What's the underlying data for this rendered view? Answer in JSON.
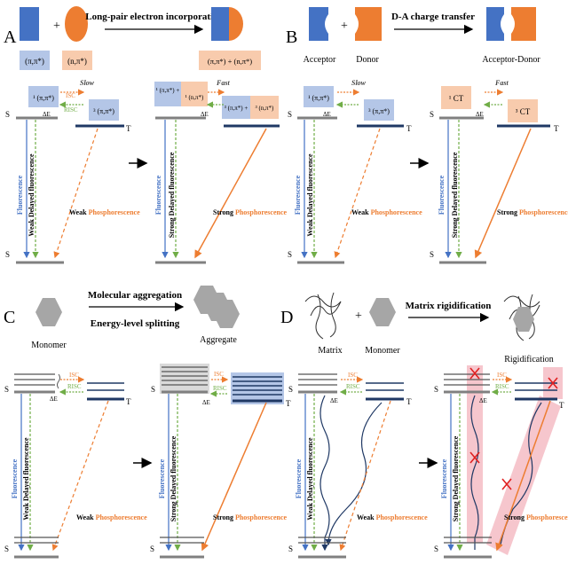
{
  "colors": {
    "blue": "#4472c4",
    "blue_light": "#b4c6e7",
    "orange": "#ed7d31",
    "orange_light": "#f8cbad",
    "green": "#70ad47",
    "navy": "#1f3864",
    "gray": "#808080",
    "red": "#e02020",
    "pink": "#f4b8c0"
  },
  "panelA": {
    "letter": "A",
    "arrow_label": "Long-pair electron incorporation",
    "label_pi": "(π,π*)",
    "label_n": "(n,π*)",
    "label_mix": "(π,π*) + (n,π*)",
    "s1_box": "¹ (π,π*)",
    "t1_box": "³ (π,π*)",
    "s1_box_right_1": "¹ (π,π*) +",
    "s1_box_right_2": "¹ (n,π*)",
    "t1_box_right_1": "³ (π,π*) +",
    "t1_box_right_2": "³ (n,π*)",
    "slow": "Slow",
    "fast": "Fast",
    "isc": "ISC",
    "risc": "RISC",
    "dest": "ΔE",
    "s1": "S",
    "s1_sub": "1",
    "t1": "T",
    "t1_sub": "1",
    "s0": "S",
    "s0_sub": "0",
    "fluorescence": "Fluorescence",
    "weak_delayed": "Weak Delayed fluorescence",
    "strong_delayed": "Strong Delayed fluorescence",
    "weak": "Weak",
    "strong": "Strong",
    "phosphorescence": "Phosphorescence"
  },
  "panelB": {
    "letter": "B",
    "arrow_label": "D-A charge transfer",
    "acceptor": "Acceptor",
    "donor": "Donor",
    "acceptor_donor": "Acceptor-Donor",
    "s1_box": "¹ (π,π*)",
    "t1_box": "³ (π,π*)",
    "s1_box_ct": "¹ CT",
    "t1_box_ct": "³ CT",
    "slow": "Slow",
    "fast": "Fast"
  },
  "panelC": {
    "letter": "C",
    "arrow_label_1": "Molecular aggregation",
    "arrow_label_2": "Energy-level splitting",
    "monomer": "Monomer",
    "aggregate": "Aggregate"
  },
  "panelD": {
    "letter": "D",
    "arrow_label": "Matrix rigidification",
    "matrix": "Matrix",
    "monomer": "Monomer",
    "rigidification": "Rigidification"
  }
}
